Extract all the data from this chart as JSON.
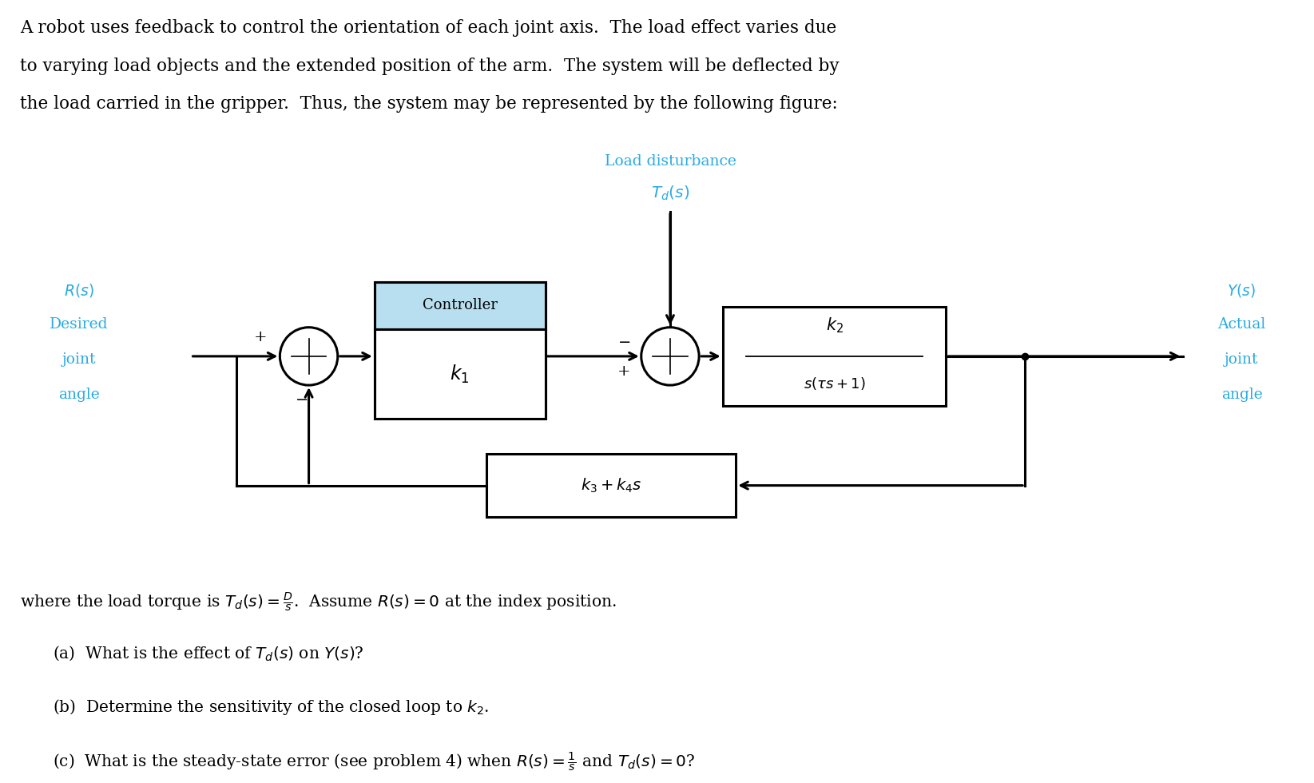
{
  "bg_color": "#ffffff",
  "text_color": "#000000",
  "cyan_color": "#29abe2",
  "controller_fill": "#b8dff0",
  "lw": 2.2,
  "header_lines": [
    "A robot uses feedback to control the orientation of each joint axis.  The load effect varies due",
    "to varying load objects and the extended position of the arm.  The system will be deflected by",
    "the load carried in the gripper.  Thus, the system may be represented by the following figure:"
  ],
  "load_label_line1": "Load disturbance",
  "load_label_line2": "$T_d(s)$",
  "controller_title": "Controller",
  "k1_label": "$k_1$",
  "plant_label_num": "$k_2$",
  "plant_label_den": "$s(\\tau s+1)$",
  "feedback_label": "$k_3+k_4s$",
  "R_lines": [
    "$R(s)$",
    "Desired",
    "joint",
    "angle"
  ],
  "Y_lines": [
    "$Y(s)$",
    "Actual",
    "joint",
    "angle"
  ],
  "footer_line0": "where the load torque is $T_d(s) = \\frac{D}{s}$.  Assume $R(s) = 0$ at the index position.",
  "footer_line1": "(a)  What is the effect of $T_d(s)$ on $Y(s)$?",
  "footer_line2": "(b)  Determine the sensitivity of the closed loop to $k_2$.",
  "footer_line3": "(c)  What is the steady-state error (see problem 4) when $R(s) = \\frac{1}{s}$ and $T_d(s) = 0$?"
}
